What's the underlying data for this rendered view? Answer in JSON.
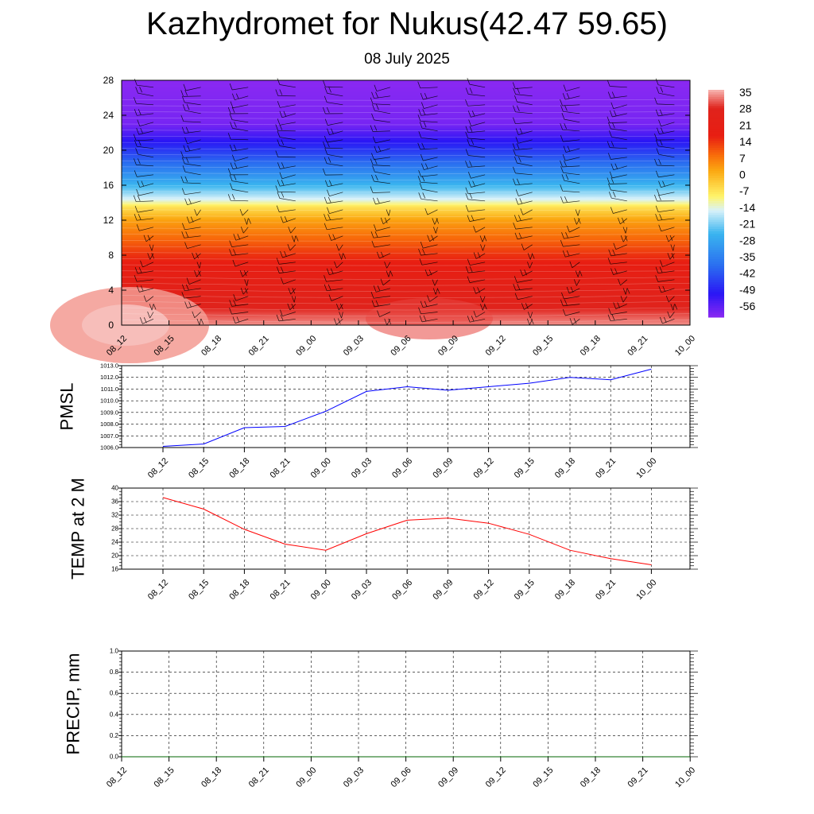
{
  "title": "Kazhydromet for Nukus(42.47 59.65)",
  "subtitle": "08 July 2025",
  "chart_data": [
    {
      "type": "heatmap",
      "description_of_field": "temperature vs height with wind barbs",
      "ylim": [
        0,
        28
      ],
      "yticks": [
        "0",
        "4",
        "8",
        "12",
        "16",
        "20",
        "24",
        "28"
      ],
      "xticks": [
        "08_12",
        "08_15",
        "08_18",
        "08_21",
        "09_00",
        "09_03",
        "09_06",
        "09_09",
        "09_12",
        "09_15",
        "09_18",
        "09_21",
        "10_00"
      ],
      "colorbar": {
        "labels": [
          "35",
          "28",
          "21",
          "14",
          "7",
          "0",
          "-7",
          "-14",
          "-21",
          "-28",
          "-35",
          "-42",
          "-49",
          "-56"
        ],
        "stops": [
          {
            "v": 38,
            "color": "#f7b6b2"
          },
          {
            "v": 30,
            "color": "#e0231c"
          },
          {
            "v": 18,
            "color": "#e81e12"
          },
          {
            "v": 10,
            "color": "#f86a0a"
          },
          {
            "v": 3,
            "color": "#fba912"
          },
          {
            "v": -8,
            "color": "#fff46a"
          },
          {
            "v": -14,
            "color": "#d9f2f9"
          },
          {
            "v": -24,
            "color": "#3ab5ef"
          },
          {
            "v": -38,
            "color": "#2a6df0"
          },
          {
            "v": -50,
            "color": "#2a16f5"
          },
          {
            "v": -60,
            "color": "#8a29f2"
          }
        ],
        "profile_height_temp": [
          [
            0,
            36
          ],
          [
            2,
            30
          ],
          [
            5,
            24
          ],
          [
            8,
            16
          ],
          [
            10,
            10
          ],
          [
            12,
            4
          ],
          [
            13.5,
            -5
          ],
          [
            14.3,
            -13
          ],
          [
            16,
            -24
          ],
          [
            18,
            -35
          ],
          [
            20,
            -45
          ],
          [
            21.5,
            -52
          ],
          [
            23,
            -58
          ],
          [
            28,
            -60
          ]
        ]
      }
    },
    {
      "type": "line",
      "ylabel": "PMSL",
      "ylim": [
        1006,
        1013
      ],
      "yticks": [
        "1006.0",
        "1007.0",
        "1008.0",
        "1009.0",
        "1010.0",
        "1011.0",
        "1012.0",
        "1013.0"
      ],
      "categories": [
        "08_12",
        "08_15",
        "08_18",
        "08_21",
        "09_00",
        "09_03",
        "09_06",
        "09_09",
        "09_12",
        "09_15",
        "09_18",
        "09_21",
        "10_00"
      ],
      "series": [
        {
          "values": [
            1006.1,
            1006.3,
            1007.7,
            1007.8,
            1009.1,
            1010.8,
            1011.2,
            1010.9,
            1011.2,
            1011.5,
            1012.0,
            1011.8,
            1012.7
          ]
        }
      ],
      "color": "#0000ff"
    },
    {
      "type": "line",
      "ylabel": "TEMP at 2 M",
      "ylim": [
        16,
        40
      ],
      "yticks": [
        "16",
        "20",
        "24",
        "28",
        "32",
        "36",
        "40"
      ],
      "categories": [
        "08_12",
        "08_15",
        "08_18",
        "08_21",
        "09_00",
        "09_03",
        "09_06",
        "09_09",
        "09_12",
        "09_15",
        "09_18",
        "09_21",
        "10_00"
      ],
      "series": [
        {
          "values": [
            37.2,
            33.8,
            27.8,
            23.4,
            21.6,
            26.5,
            30.5,
            31.1,
            29.6,
            26.3,
            21.6,
            19.1,
            17.3
          ]
        }
      ],
      "color": "#ff0000"
    },
    {
      "type": "line",
      "ylabel": "PRECIP, mm",
      "ylim": [
        0,
        1
      ],
      "yticks": [
        "0.0",
        "0.2",
        "0.4",
        "0.6",
        "0.8",
        "1.0"
      ],
      "xticks": [
        "08_12",
        "08_15",
        "08_18",
        "08_21",
        "09_00",
        "09_03",
        "09_06",
        "09_09",
        "09_12",
        "09_15",
        "09_18",
        "09_21",
        "10_00"
      ],
      "series": [
        {
          "values": [
            0,
            0,
            0,
            0,
            0,
            0,
            0,
            0,
            0,
            0,
            0,
            0,
            0
          ]
        }
      ],
      "color": "#006400"
    }
  ]
}
